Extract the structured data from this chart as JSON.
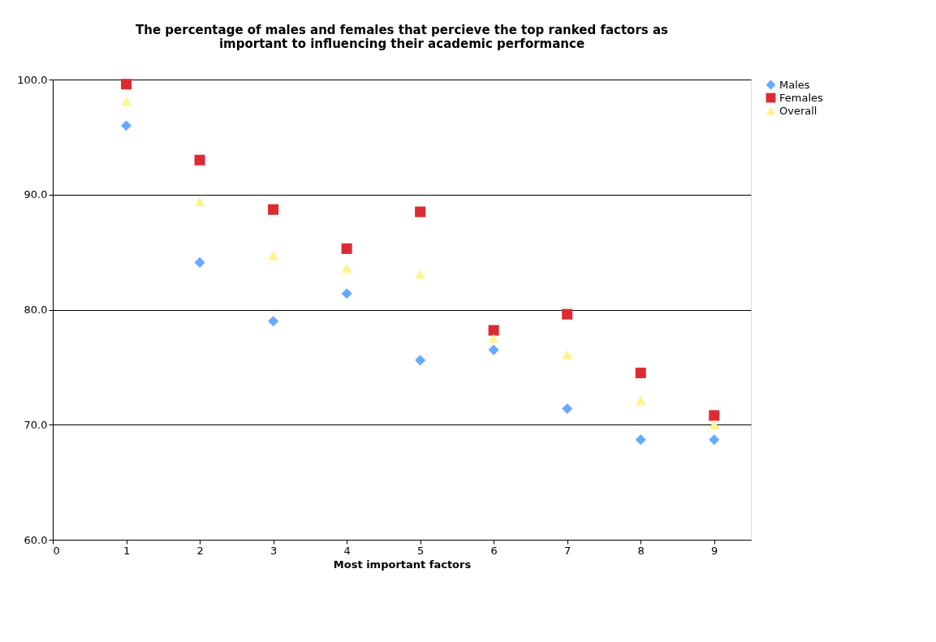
{
  "chart_data": {
    "type": "scatter",
    "title": [
      "The percentage of males and females that percieve the top ranked factors as",
      "important to influencing their academic performance"
    ],
    "xlabel": "Most important factors",
    "x": [
      1,
      2,
      3,
      4,
      5,
      6,
      7,
      8,
      9
    ],
    "series": [
      {
        "name": "Males",
        "color": "#66aaff",
        "marker": "diamond",
        "values": [
          96.0,
          84.1,
          79.0,
          81.4,
          75.6,
          76.5,
          71.4,
          68.7,
          68.7
        ]
      },
      {
        "name": "Females",
        "color": "#dd2b33",
        "marker": "square",
        "values": [
          99.6,
          93.0,
          88.7,
          85.3,
          88.5,
          78.2,
          79.6,
          74.5,
          70.8
        ]
      },
      {
        "name": "Overall",
        "color": "#fff38f",
        "marker": "triangle",
        "values": [
          98.1,
          89.4,
          84.7,
          83.6,
          83.1,
          77.5,
          76.1,
          72.1,
          70.0
        ]
      }
    ],
    "xlim": [
      0,
      9.5
    ],
    "xticks": [
      0,
      1,
      2,
      3,
      4,
      5,
      6,
      7,
      8,
      9
    ],
    "ylim": [
      60,
      100
    ],
    "yticks": [
      {
        "value": 60,
        "label": "60.0"
      },
      {
        "value": 70,
        "label": "70.0"
      },
      {
        "value": 80,
        "label": "80.0"
      },
      {
        "value": 90,
        "label": "90.0"
      },
      {
        "value": 100,
        "label": "100.0"
      }
    ],
    "grid": "y",
    "legend": "right"
  }
}
